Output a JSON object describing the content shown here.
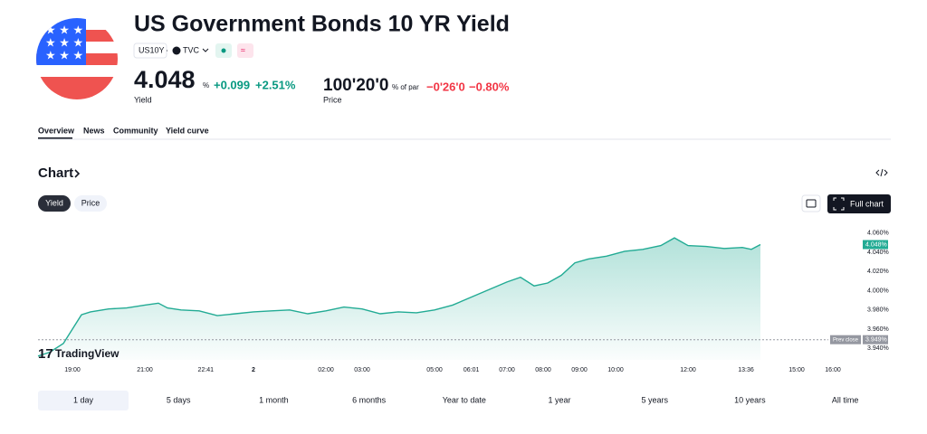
{
  "header": {
    "title": "US Government Bonds 10 YR Yield",
    "symbol": "US10Y",
    "separator": "·",
    "exchange": "TVC",
    "yield": "4.048",
    "yield_unit": "%",
    "change": "+0.099",
    "change_pct": "+2.51%",
    "yield_label": "Yield",
    "price": "100'20'0",
    "price_unit": "% of par",
    "price_change": "−0'26'0",
    "price_change_pct": "−0.80%",
    "price_label": "Price"
  },
  "tabs": [
    "Overview",
    "News",
    "Community",
    "Yield curve"
  ],
  "section": {
    "title": "Chart",
    "toggles": [
      "Yield",
      "Price"
    ],
    "full_chart": "Full chart",
    "watermark": "TradingView"
  },
  "ranges": [
    "1 day",
    "5 days",
    "1 month",
    "6 months",
    "Year to date",
    "1 year",
    "5 years",
    "10 years",
    "All time"
  ],
  "chart_data": {
    "type": "area",
    "color": "#22ab94",
    "grid": false,
    "x": [
      0.05,
      0.375,
      0.75,
      1,
      1.25,
      1.5,
      2,
      2.5,
      3,
      3.375,
      3.625,
      4,
      4.5,
      5,
      5.5,
      6,
      6.5,
      7,
      7.5,
      8,
      8.5,
      9,
      9.5,
      10,
      10.5,
      11,
      11.5,
      12,
      12.5,
      13,
      13.375,
      13.75,
      14.125,
      14.5,
      14.875,
      15.25,
      15.75,
      16.25,
      16.75,
      17.25,
      17.625,
      18,
      18.5,
      19,
      19.5,
      19.75,
      20
    ],
    "values": [
      3.932,
      3.936,
      3.945,
      3.96,
      3.975,
      3.978,
      3.981,
      3.982,
      3.985,
      3.987,
      3.982,
      3.98,
      3.979,
      3.974,
      3.976,
      3.978,
      3.979,
      3.98,
      3.976,
      3.979,
      3.983,
      3.981,
      3.976,
      3.978,
      3.977,
      3.98,
      3.985,
      3.993,
      4.001,
      4.009,
      4.014,
      4.005,
      4.008,
      4.016,
      4.029,
      4.033,
      4.036,
      4.041,
      4.043,
      4.047,
      4.055,
      4.047,
      4.046,
      4.044,
      4.045,
      4.043,
      4.048
    ],
    "xlim": [
      0.05,
      22.5
    ],
    "ylim": [
      3.928,
      4.072
    ],
    "xticks": [
      {
        "value": 1,
        "label": "19:00"
      },
      {
        "value": 3,
        "label": "21:00"
      },
      {
        "value": 4.683,
        "label": "22:41"
      },
      {
        "value": 6,
        "label": "2"
      },
      {
        "value": 8,
        "label": "02:00"
      },
      {
        "value": 9,
        "label": "03:00"
      },
      {
        "value": 11,
        "label": "05:00"
      },
      {
        "value": 12.017,
        "label": "06:01"
      },
      {
        "value": 13,
        "label": "07:00"
      },
      {
        "value": 14,
        "label": "08:00"
      },
      {
        "value": 15,
        "label": "09:00"
      },
      {
        "value": 16,
        "label": "10:00"
      },
      {
        "value": 18,
        "label": "12:00"
      },
      {
        "value": 19.6,
        "label": "13:36"
      },
      {
        "value": 21,
        "label": "15:00"
      },
      {
        "value": 22,
        "label": "16:00"
      }
    ],
    "yticks": [
      {
        "value": 3.94,
        "label": "3.940%"
      },
      {
        "value": 3.96,
        "label": "3.960%"
      },
      {
        "value": 3.98,
        "label": "3.980%"
      },
      {
        "value": 4.0,
        "label": "4.000%"
      },
      {
        "value": 4.02,
        "label": "4.020%"
      },
      {
        "value": 4.04,
        "label": "4.040%"
      },
      {
        "value": 4.06,
        "label": "4.060%"
      }
    ],
    "prev_close": {
      "text": "Prev close",
      "value": 3.949,
      "label": "3.949%"
    },
    "last_value": {
      "value": 4.048,
      "label": "4.048%"
    }
  }
}
